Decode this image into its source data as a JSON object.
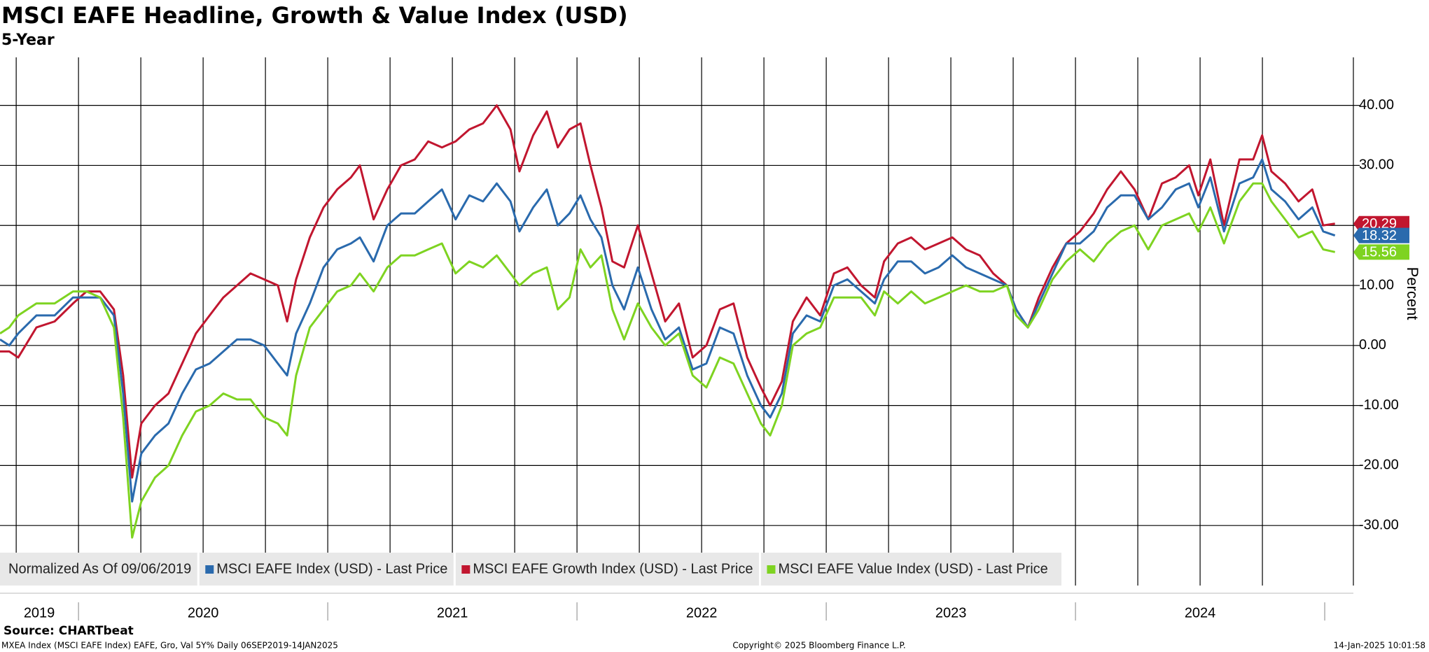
{
  "chart_data": {
    "type": "line",
    "title": "MSCI EAFE Headline, Growth & Value Index (USD)",
    "subtitle": "5-Year",
    "y_axis_label": "Percent",
    "legend_note": "Normalized As Of 09/06/2019",
    "source": "Source: CHARTbeat",
    "footer_left": "MXEA Index (MSCI EAFE Index) EAFE, Gro, Val 5Y%  Daily 06SEP2019-14JAN2025",
    "footer_center": "Copyright© 2025 Bloomberg Finance L.P.",
    "footer_right": "14-Jan-2025 10:01:58",
    "grid": true,
    "xlim": [
      2019.685,
      2025.115
    ],
    "xticks": [
      2019,
      2020,
      2021,
      2022,
      2023,
      2024
    ],
    "ylim": [
      -40,
      48
    ],
    "yticks": [
      {
        "value": -30,
        "label": "-30.00"
      },
      {
        "value": -20,
        "label": "-20.00"
      },
      {
        "value": -10,
        "label": "-10.00"
      },
      {
        "value": 0,
        "label": "0.00"
      },
      {
        "value": 10,
        "label": "10.00"
      },
      {
        "value": 20,
        "label": "20.00"
      },
      {
        "value": 30,
        "label": "30.00"
      },
      {
        "value": 40,
        "label": "40.00"
      }
    ],
    "x": [
      2019.685,
      2019.722,
      2019.758,
      2019.831,
      2019.904,
      2019.978,
      2020.032,
      2020.087,
      2020.142,
      2020.179,
      2020.215,
      2020.252,
      2020.307,
      2020.361,
      2020.416,
      2020.471,
      2020.526,
      2020.581,
      2020.636,
      2020.69,
      2020.745,
      2020.8,
      2020.837,
      2020.873,
      2020.928,
      2020.983,
      2021.038,
      2021.093,
      2021.129,
      2021.184,
      2021.239,
      2021.294,
      2021.349,
      2021.403,
      2021.458,
      2021.513,
      2021.568,
      2021.623,
      2021.678,
      2021.733,
      2021.769,
      2021.824,
      2021.879,
      2021.923,
      2021.97,
      2022.014,
      2022.054,
      2022.098,
      2022.142,
      2022.189,
      2022.244,
      2022.299,
      2022.354,
      2022.409,
      2022.464,
      2022.519,
      2022.573,
      2022.628,
      2022.683,
      2022.738,
      2022.775,
      2022.822,
      2022.866,
      2022.921,
      2022.976,
      2023.031,
      2023.085,
      2023.14,
      2023.195,
      2023.232,
      2023.287,
      2023.341,
      2023.396,
      2023.451,
      2023.506,
      2023.561,
      2023.616,
      2023.67,
      2023.725,
      2023.762,
      2023.809,
      2023.853,
      2023.908,
      2023.963,
      2024.018,
      2024.073,
      2024.127,
      2024.182,
      2024.237,
      2024.292,
      2024.347,
      2024.402,
      2024.456,
      2024.493,
      2024.541,
      2024.596,
      2024.658,
      2024.713,
      2024.749,
      2024.786,
      2024.841,
      2024.895,
      2024.95,
      2024.994,
      2025.041
    ],
    "series": [
      {
        "name": "MSCI EAFE Growth Index (USD) - Last Price",
        "color": "#c1162f",
        "values": [
          -1,
          -1,
          -2,
          3,
          4,
          7,
          9,
          9,
          6,
          -5,
          -22,
          -13,
          -10,
          -8,
          -3,
          2,
          5,
          8,
          10,
          12,
          11,
          10,
          4,
          11,
          18,
          23,
          26,
          28,
          30,
          21,
          26,
          30,
          31,
          34,
          33,
          34,
          36,
          37,
          40,
          36,
          29,
          35,
          39,
          33,
          36,
          37,
          30,
          23,
          14,
          13,
          20,
          12,
          4,
          7,
          -2,
          0,
          6,
          7,
          -2,
          -7,
          -10,
          -6,
          4,
          8,
          5,
          12,
          13,
          10,
          8,
          14,
          17,
          18,
          16,
          17,
          18,
          16,
          15,
          12,
          10,
          6,
          3,
          8,
          13,
          17,
          19,
          22,
          26,
          29,
          26,
          21,
          27,
          28,
          30,
          25,
          31,
          20,
          31,
          31,
          35,
          29,
          27,
          24,
          26,
          20,
          20.29
        ]
      },
      {
        "name": "MSCI EAFE Index (USD) - Last Price",
        "color": "#2a6aad",
        "values": [
          1,
          0,
          2,
          5,
          5,
          8,
          8,
          8,
          5,
          -8,
          -26,
          -18,
          -15,
          -13,
          -8,
          -4,
          -3,
          -1,
          1,
          1,
          0,
          -3,
          -5,
          2,
          7,
          13,
          16,
          17,
          18,
          14,
          20,
          22,
          22,
          24,
          26,
          21,
          25,
          24,
          27,
          24,
          19,
          23,
          26,
          20,
          22,
          25,
          21,
          18,
          10,
          6,
          13,
          6,
          1,
          3,
          -4,
          -3,
          3,
          2,
          -5,
          -10,
          -12,
          -8,
          2,
          5,
          4,
          10,
          11,
          9,
          7,
          11,
          14,
          14,
          12,
          13,
          15,
          13,
          12,
          11,
          10,
          6,
          3,
          7,
          12,
          17,
          17,
          19,
          23,
          25,
          25,
          21,
          23,
          26,
          27,
          23,
          28,
          19,
          27,
          28,
          31,
          26,
          24,
          21,
          23,
          19,
          18.32
        ]
      },
      {
        "name": "MSCI EAFE Value Index (USD) - Last Price",
        "color": "#7ed321",
        "values": [
          2,
          3,
          5,
          7,
          7,
          9,
          9,
          8,
          3,
          -12,
          -32,
          -26,
          -22,
          -20,
          -15,
          -11,
          -10,
          -8,
          -9,
          -9,
          -12,
          -13,
          -15,
          -5,
          3,
          6,
          9,
          10,
          12,
          9,
          13,
          15,
          15,
          16,
          17,
          12,
          14,
          13,
          15,
          12,
          10,
          12,
          13,
          6,
          8,
          16,
          13,
          15,
          6,
          1,
          7,
          3,
          0,
          2,
          -5,
          -7,
          -2,
          -3,
          -8,
          -13,
          -15,
          -10,
          0,
          2,
          3,
          8,
          8,
          8,
          5,
          9,
          7,
          9,
          7,
          8,
          9,
          10,
          9,
          9,
          10,
          5,
          3,
          6,
          11,
          14,
          16,
          14,
          17,
          19,
          20,
          16,
          20,
          21,
          22,
          19,
          23,
          17,
          24,
          27,
          27,
          24,
          21,
          18,
          19,
          16,
          15.56
        ]
      }
    ],
    "legend_order": [
      1,
      0,
      2
    ]
  }
}
